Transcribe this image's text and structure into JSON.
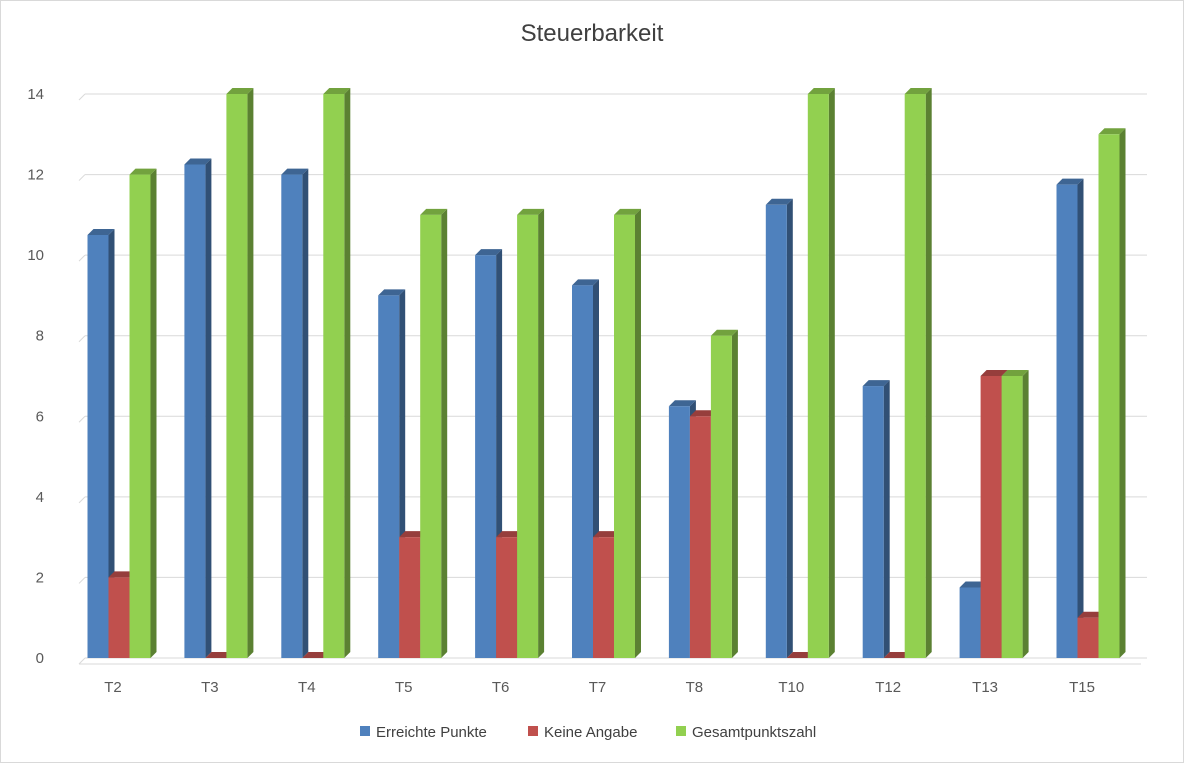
{
  "chart_data": {
    "type": "bar",
    "title": "Steuerbarkeit",
    "xlabel": "",
    "ylabel": "",
    "ylim": [
      0,
      14
    ],
    "yticks": [
      0,
      2,
      4,
      6,
      8,
      10,
      12,
      14
    ],
    "grid": true,
    "legend": "bottom",
    "categories": [
      "T2",
      "T3",
      "T4",
      "T5",
      "T6",
      "T7",
      "T8",
      "T10",
      "T12",
      "T13",
      "T15"
    ],
    "series": [
      {
        "name": "Erreichte Punkte",
        "color": "#4f81bd",
        "values": [
          10.5,
          12.25,
          12,
          9,
          10,
          9.25,
          6.25,
          11.25,
          6.75,
          1.75,
          11.75
        ]
      },
      {
        "name": "Keine Angabe",
        "color": "#c0504d",
        "values": [
          2,
          0,
          0,
          3,
          3,
          3,
          6,
          0,
          0,
          7,
          1
        ]
      },
      {
        "name": "Gesamtpunktszahl",
        "color": "#92d050",
        "values": [
          12,
          14,
          14,
          11,
          11,
          11,
          8,
          14,
          14,
          7,
          13
        ]
      }
    ]
  }
}
